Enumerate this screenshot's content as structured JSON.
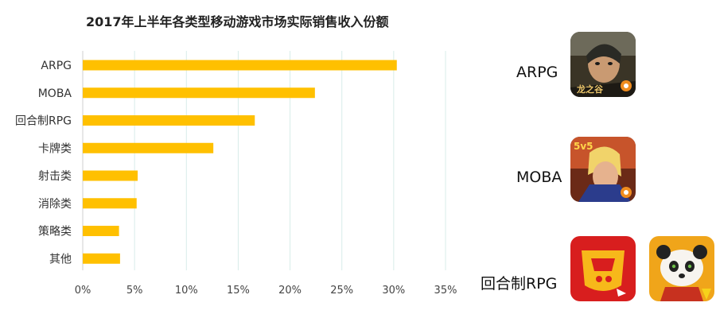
{
  "chart_data": {
    "type": "bar",
    "orientation": "horizontal",
    "title": "2017年上半年各类型移动游戏市场实际销售收入份额",
    "categories": [
      "ARPG",
      "MOBA",
      "回合制RPG",
      "卡牌类",
      "射击类",
      "消除类",
      "策略类",
      "其他"
    ],
    "values": [
      30.3,
      22.4,
      16.6,
      12.6,
      5.3,
      5.2,
      3.5,
      3.6
    ],
    "value_unit": "%",
    "xlim": [
      0,
      35
    ],
    "x_ticks": [
      "0%",
      "5%",
      "10%",
      "15%",
      "20%",
      "25%",
      "30%",
      "35%"
    ],
    "bar_color": "#FFC000",
    "grid": "vertical",
    "legend": "none"
  },
  "side_panel": {
    "labels": {
      "arpg": "ARPG",
      "moba": "MOBA",
      "turn_rpg": "回合制RPG"
    },
    "icons": {
      "arpg": "dragon-nest-game-icon",
      "moba": "kings-glory-game-icon",
      "turn_rpg_1": "fantasy-westward-journey-game-icon",
      "turn_rpg_2": "kung-fu-panda-game-icon"
    },
    "icon_texts": {
      "arpg_logo": "龙之谷",
      "moba_badge": "5v5"
    }
  }
}
